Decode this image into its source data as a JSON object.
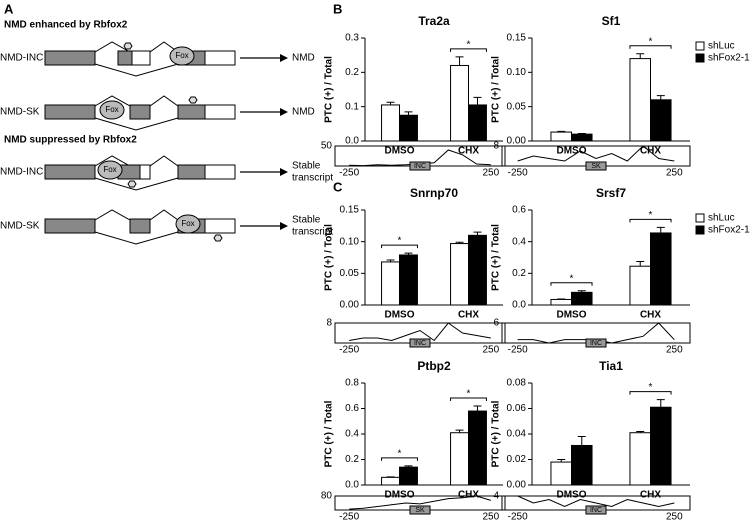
{
  "panels": {
    "a": "A",
    "b": "B",
    "c": "C"
  },
  "diagram": {
    "sections": [
      {
        "title": "NMD enhanced by Rbfox2",
        "rows": [
          {
            "name": "NMD-INC",
            "fox": "Fox",
            "outcome": [
              "NMD"
            ]
          },
          {
            "name": "NMD-SK",
            "fox": "Fox",
            "outcome": [
              "NMD"
            ]
          }
        ]
      },
      {
        "title": "NMD suppressed by Rbfox2",
        "rows": [
          {
            "name": "NMD-INC",
            "fox": "Fox",
            "outcome": [
              "Stable",
              "transcript"
            ]
          },
          {
            "name": "NMD-SK",
            "fox": "Fox",
            "outcome": [
              "Stable",
              "transcript"
            ]
          }
        ]
      }
    ]
  },
  "chart_data": [
    {
      "type": "bar",
      "title": "Tra2a",
      "y_label": "PTC (+) / Total",
      "categories": [
        "DMSO",
        "CHX"
      ],
      "series": [
        {
          "name": "shLuc",
          "color": "#ffffff",
          "values": [
            0.105,
            0.22
          ],
          "errors": [
            0.008,
            0.025
          ]
        },
        {
          "name": "shFox2-1",
          "color": "#000000",
          "values": [
            0.075,
            0.105
          ],
          "errors": [
            0.01,
            0.022
          ]
        }
      ],
      "ylim": [
        0,
        0.3
      ],
      "yticks": [
        {
          "value": 0,
          "label": "0.0"
        },
        0.1,
        0.2,
        0.3
      ],
      "significance": [
        {
          "label": "*",
          "category": "CHX"
        }
      ],
      "trace": {
        "x": [
          -250,
          -200,
          -150,
          -100,
          -50,
          0,
          50,
          100,
          150,
          200,
          250
        ],
        "values": [
          2,
          1,
          3,
          2,
          3,
          5,
          8,
          40,
          28,
          5,
          3
        ],
        "xlim": [
          -300,
          300
        ],
        "xticks": [
          -250,
          250
        ],
        "ylim": [
          0,
          50
        ],
        "yticks": [
          50
        ],
        "label": "INC"
      }
    },
    {
      "type": "bar",
      "title": "Sf1",
      "y_label": "PTC (+) / Total",
      "categories": [
        "DMSO",
        "CHX"
      ],
      "legend": "right",
      "series": [
        {
          "name": "shLuc",
          "color": "#ffffff",
          "values": [
            0.013,
            0.12
          ],
          "errors": [
            0.001,
            0.007
          ]
        },
        {
          "name": "shFox2-1",
          "color": "#000000",
          "values": [
            0.01,
            0.06
          ],
          "errors": [
            0.001,
            0.006
          ]
        }
      ],
      "ylim": [
        0,
        0.15
      ],
      "yticks": [
        {
          "value": 0,
          "label": "0.00"
        },
        0.05,
        {
          "value": 0.1,
          "label": "0.10"
        },
        0.15
      ],
      "significance": [
        {
          "label": "*",
          "category": "CHX"
        }
      ],
      "trace": {
        "x": [
          -250,
          -200,
          -150,
          -100,
          -50,
          0,
          50,
          100,
          150,
          200,
          250
        ],
        "values": [
          2,
          4,
          3,
          2,
          6,
          3,
          5,
          2,
          8,
          3,
          2
        ],
        "xlim": [
          -300,
          300
        ],
        "xticks": [
          -250,
          250
        ],
        "ylim": [
          0,
          8
        ],
        "yticks": [
          8
        ],
        "label": "SK"
      }
    },
    {
      "type": "bar",
      "title": "Snrnp70",
      "y_label": "PTC (+) / Total",
      "categories": [
        "DMSO",
        "CHX"
      ],
      "series": [
        {
          "name": "shLuc",
          "color": "#ffffff",
          "values": [
            0.068,
            0.097
          ],
          "errors": [
            0.003,
            0.002
          ]
        },
        {
          "name": "shFox2-1",
          "color": "#000000",
          "values": [
            0.079,
            0.11
          ],
          "errors": [
            0.003,
            0.005
          ]
        }
      ],
      "ylim": [
        0,
        0.15
      ],
      "yticks": [
        {
          "value": 0,
          "label": "0.00"
        },
        0.05,
        {
          "value": 0.1,
          "label": "0.10"
        },
        0.15
      ],
      "significance": [
        {
          "label": "*",
          "category": "DMSO"
        }
      ],
      "trace": {
        "x": [
          -250,
          -200,
          -150,
          -100,
          -50,
          0,
          50,
          100,
          150,
          200,
          250
        ],
        "values": [
          1,
          2,
          2,
          1,
          3,
          5,
          1,
          8,
          4,
          3,
          2
        ],
        "xlim": [
          -300,
          300
        ],
        "xticks": [
          -250,
          250
        ],
        "ylim": [
          0,
          8
        ],
        "yticks": [
          8
        ],
        "label": "INC"
      }
    },
    {
      "type": "bar",
      "title": "Srsf7",
      "y_label": "PTC (+) / Total",
      "categories": [
        "DMSO",
        "CHX"
      ],
      "legend": "right",
      "series": [
        {
          "name": "shLuc",
          "color": "#ffffff",
          "values": [
            0.035,
            0.245
          ],
          "errors": [
            0.003,
            0.03
          ]
        },
        {
          "name": "shFox2-1",
          "color": "#000000",
          "values": [
            0.08,
            0.455
          ],
          "errors": [
            0.01,
            0.035
          ]
        }
      ],
      "ylim": [
        0,
        0.6
      ],
      "yticks": [
        {
          "value": 0,
          "label": "0.0"
        },
        0.2,
        0.4,
        0.6
      ],
      "significance": [
        {
          "label": "*",
          "category": "DMSO"
        },
        {
          "label": "*",
          "category": "CHX"
        }
      ],
      "trace": {
        "x": [
          -250,
          -200,
          -150,
          -100,
          -50,
          0,
          50,
          100,
          150,
          200,
          250
        ],
        "values": [
          1,
          1,
          0,
          1,
          1,
          1,
          0,
          1,
          2,
          6,
          1
        ],
        "xlim": [
          -300,
          300
        ],
        "xticks": [
          -250,
          250
        ],
        "ylim": [
          0,
          6
        ],
        "yticks": [
          6
        ],
        "label": "INC"
      }
    },
    {
      "type": "bar",
      "title": "Ptbp2",
      "y_label": "PTC (+) / Total",
      "categories": [
        "DMSO",
        "CHX"
      ],
      "series": [
        {
          "name": "shLuc",
          "color": "#ffffff",
          "values": [
            0.06,
            0.41
          ],
          "errors": [
            0.004,
            0.02
          ]
        },
        {
          "name": "shFox2-1",
          "color": "#000000",
          "values": [
            0.14,
            0.58
          ],
          "errors": [
            0.01,
            0.04
          ]
        }
      ],
      "ylim": [
        0,
        0.8
      ],
      "yticks": [
        {
          "value": 0,
          "label": "0.0"
        },
        0.2,
        0.4,
        0.6,
        0.8
      ],
      "significance": [
        {
          "label": "*",
          "category": "DMSO"
        },
        {
          "label": "*",
          "category": "CHX"
        }
      ],
      "trace": {
        "x": [
          -250,
          -200,
          -150,
          -100,
          -50,
          0,
          50,
          100,
          150,
          200,
          250
        ],
        "values": [
          5,
          10,
          20,
          30,
          40,
          35,
          50,
          65,
          70,
          80,
          55
        ],
        "xlim": [
          -300,
          300
        ],
        "xticks": [
          -250,
          250
        ],
        "ylim": [
          0,
          80
        ],
        "yticks": [
          80
        ],
        "label": "SK"
      }
    },
    {
      "type": "bar",
      "title": "Tia1",
      "y_label": "PTC (+) / Total",
      "categories": [
        "DMSO",
        "CHX"
      ],
      "series": [
        {
          "name": "shLuc",
          "color": "#ffffff",
          "values": [
            0.018,
            0.041
          ],
          "errors": [
            0.002,
            0.001
          ]
        },
        {
          "name": "shFox2-1",
          "color": "#000000",
          "values": [
            0.031,
            0.061
          ],
          "errors": [
            0.007,
            0.006
          ]
        }
      ],
      "ylim": [
        0,
        0.08
      ],
      "yticks": [
        {
          "value": 0,
          "label": "0.00"
        },
        0.02,
        0.04,
        0.06,
        0.08
      ],
      "significance": [
        {
          "label": "*",
          "category": "CHX"
        }
      ],
      "trace": {
        "x": [
          -250,
          -200,
          -150,
          -100,
          -50,
          0,
          50,
          100,
          150,
          200,
          250
        ],
        "values": [
          4,
          2,
          3,
          1,
          3,
          2,
          1,
          3,
          2,
          1,
          2
        ],
        "xlim": [
          -300,
          300
        ],
        "xticks": [
          -250,
          250
        ],
        "ylim": [
          0,
          4
        ],
        "yticks": [
          4
        ],
        "label": "INC"
      }
    }
  ]
}
